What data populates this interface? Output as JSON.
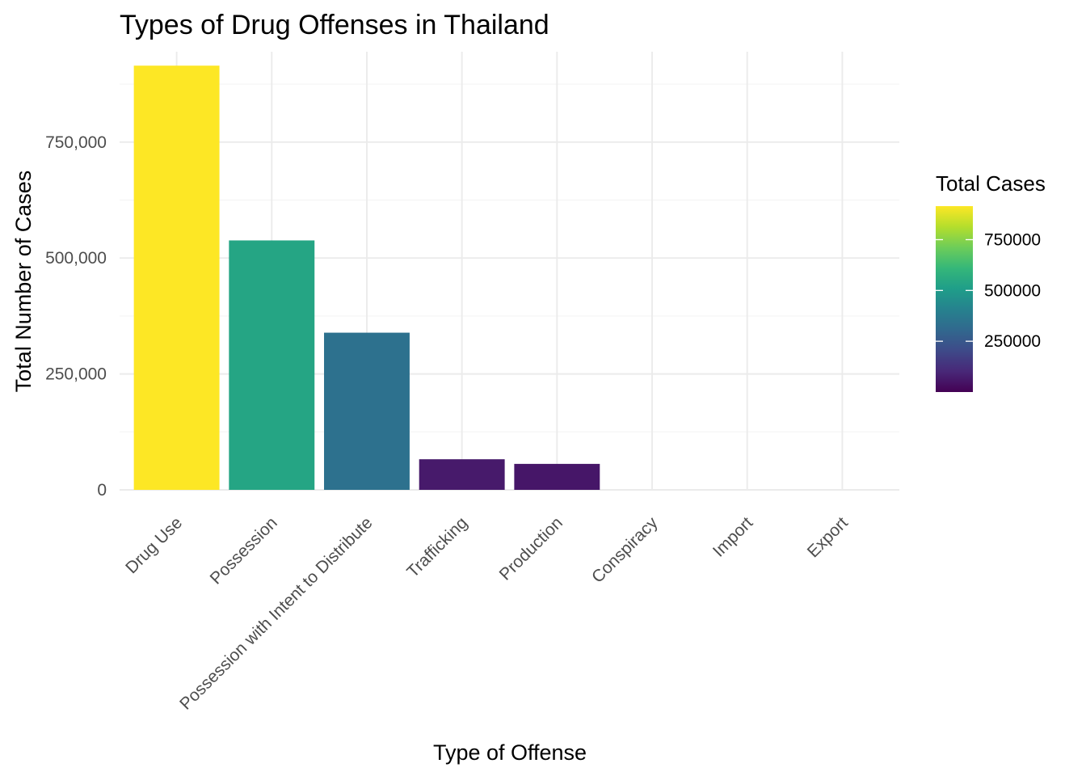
{
  "chart_data": {
    "type": "bar",
    "title": "Types of Drug Offenses in Thailand",
    "xlabel": "Type of Offense",
    "ylabel": "Total Number of Cases",
    "categories": [
      "Drug Use",
      "Possession",
      "Possession with Intent to Distribute",
      "Trafficking",
      "Production",
      "Conspiracy",
      "Import",
      "Export"
    ],
    "values": [
      915000,
      538000,
      339000,
      66000,
      56000,
      0,
      0,
      0
    ],
    "ylim": [
      0,
      945000
    ],
    "y_ticks": [
      0,
      250000,
      500000,
      750000
    ],
    "y_tick_labels": [
      "0",
      "250,000",
      "500,000",
      "750,000"
    ],
    "grid": true,
    "legend": {
      "title": "Total Cases",
      "placement": "right",
      "type": "colorbar",
      "range": [
        0,
        915000
      ],
      "ticks": [
        250000,
        500000,
        750000
      ],
      "tick_labels": [
        "250000",
        "500000",
        "750000"
      ],
      "palette": "viridis",
      "colors": [
        "#440154",
        "#482878",
        "#3E4A89",
        "#31688E",
        "#26828E",
        "#1F9E89",
        "#35B779",
        "#6DCD59",
        "#B4DE2C",
        "#FDE725"
      ]
    }
  }
}
